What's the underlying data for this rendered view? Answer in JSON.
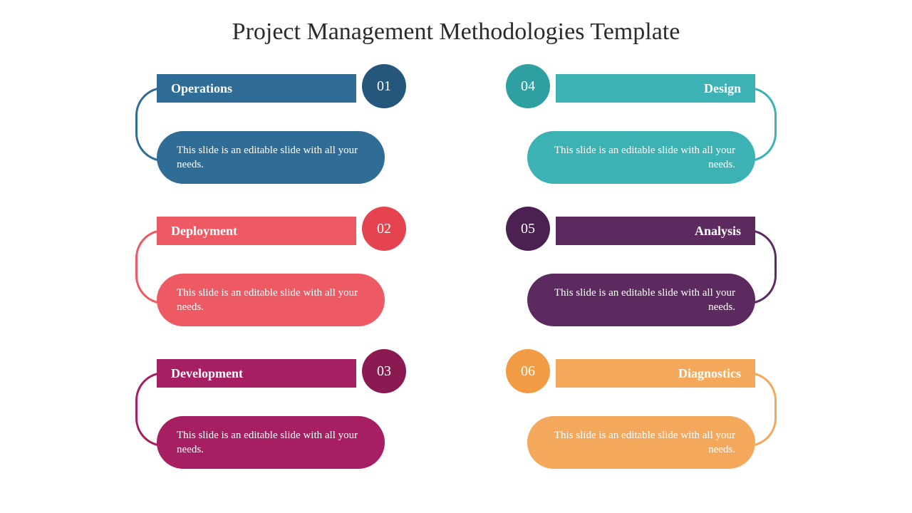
{
  "title": "Project Management Methodologies Template",
  "title_fontsize": 34,
  "title_color": "#2b2b2b",
  "background_color": "#ffffff",
  "text_color": "#ffffff",
  "body_text": "This slide is an editable slide with all your needs.",
  "layout": {
    "columns": 2,
    "rows": 3,
    "item_width": 340,
    "item_height": 160,
    "column_gap": 160,
    "row_gap": 40
  },
  "left_items": [
    {
      "number": "01",
      "label": "Operations",
      "header_color": "#2f6c96",
      "circle_color": "#24577b",
      "body_color": "#2f6c96",
      "connector_color": "#2f6c96"
    },
    {
      "number": "02",
      "label": "Deployment",
      "header_color": "#ee5a64",
      "circle_color": "#e4434f",
      "body_color": "#ee5a64",
      "connector_color": "#ee5a64"
    },
    {
      "number": "03",
      "label": "Development",
      "header_color": "#a61f62",
      "circle_color": "#8b1a53",
      "body_color": "#a61f62",
      "connector_color": "#a61f62"
    }
  ],
  "right_items": [
    {
      "number": "04",
      "label": "Design",
      "header_color": "#3cb2b4",
      "circle_color": "#2fa0a2",
      "body_color": "#3cb2b4",
      "connector_color": "#3cb2b4"
    },
    {
      "number": "05",
      "label": "Analysis",
      "header_color": "#5c2a5f",
      "circle_color": "#4a2150",
      "body_color": "#5c2a5f",
      "connector_color": "#5c2a5f"
    },
    {
      "number": "06",
      "label": "Diagnostics",
      "header_color": "#f4a85b",
      "circle_color": "#f19b44",
      "body_color": "#f4a85b",
      "connector_color": "#f4a85b"
    }
  ]
}
